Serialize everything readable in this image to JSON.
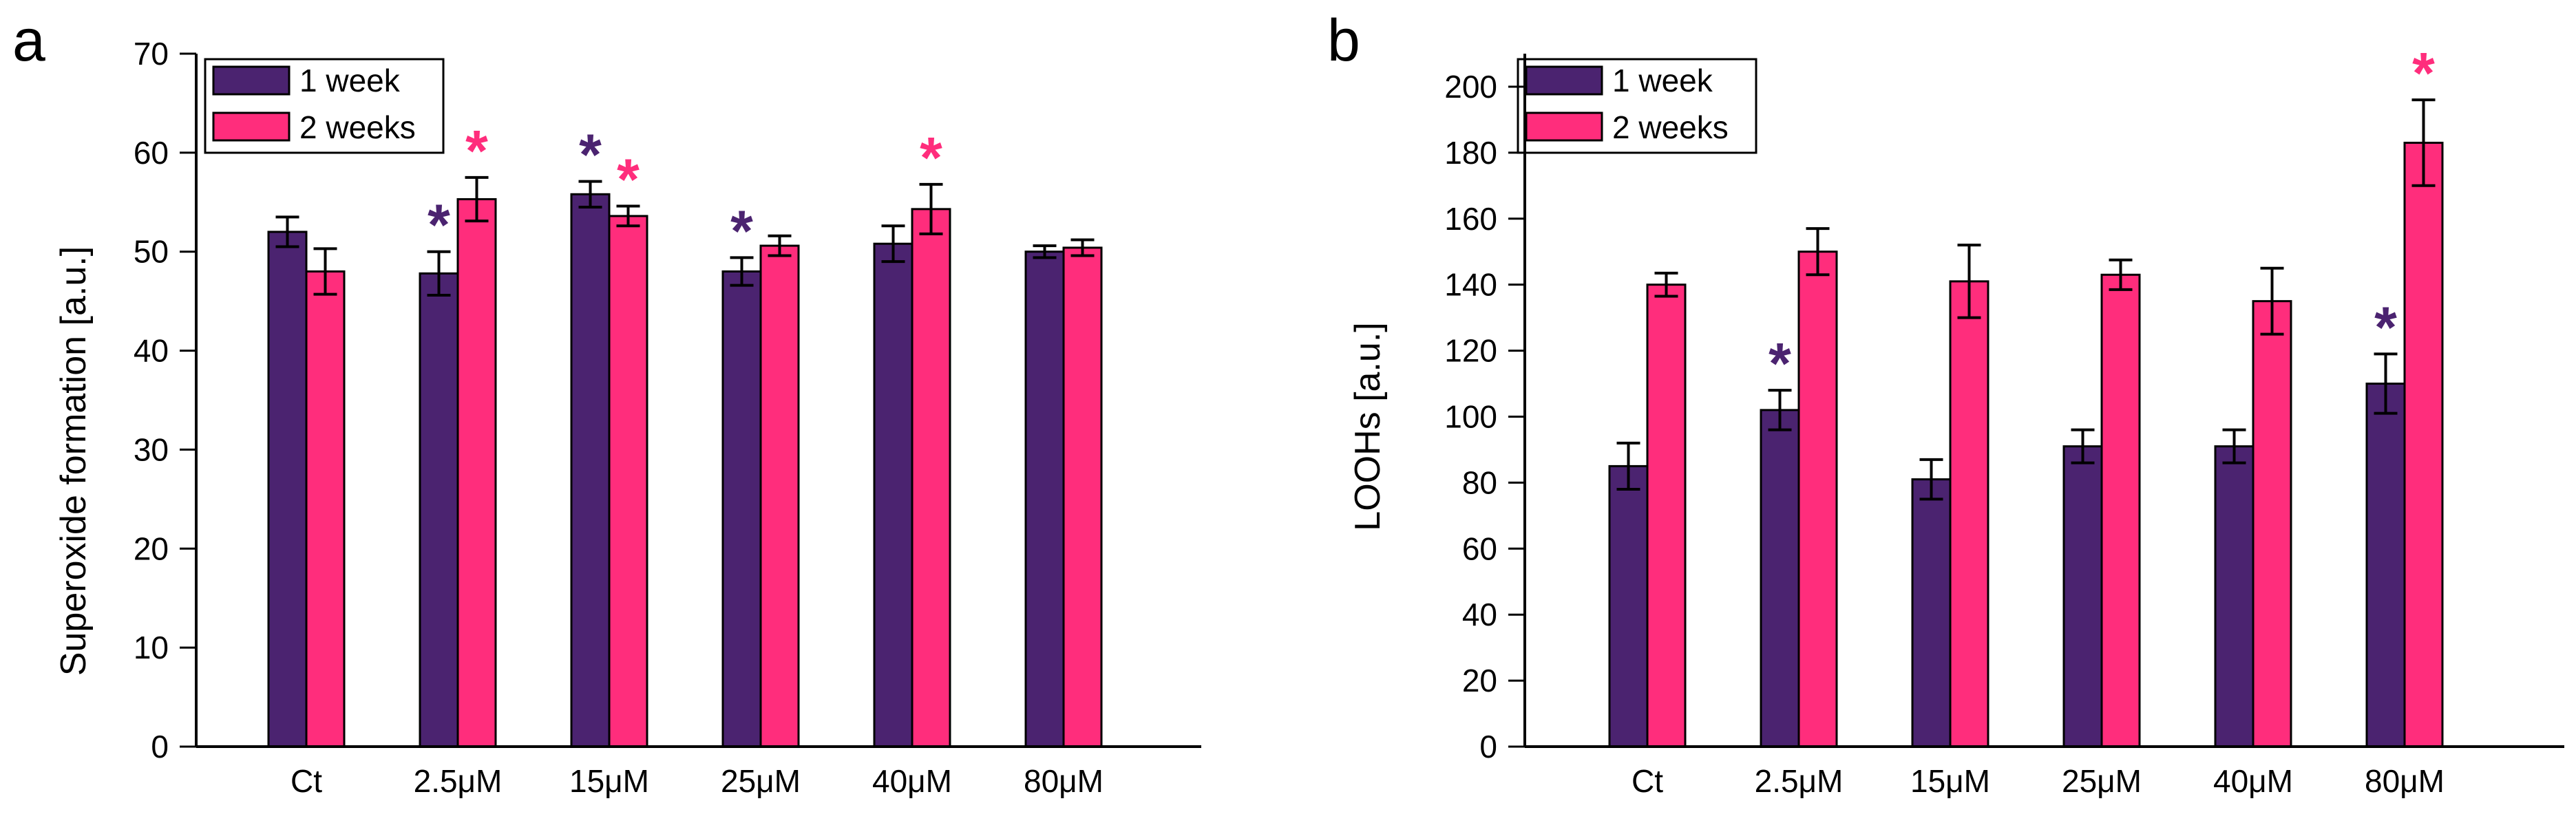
{
  "colors": {
    "week1": "#4b2370",
    "week2": "#ff2d7c"
  },
  "chart_data": [
    {
      "panel_label": "a",
      "type": "bar",
      "ylabel": "Superoxide formation [a.u.]",
      "ylim": [
        0,
        70
      ],
      "yticks": [
        0,
        10,
        20,
        30,
        40,
        50,
        60,
        70
      ],
      "categories": [
        "Ct",
        "2.5μM",
        "15μM",
        "25μM",
        "40μM",
        "80μM"
      ],
      "legend_position": "top-left",
      "series": [
        {
          "name": "1 week",
          "color": "week1",
          "values": [
            52,
            47.8,
            55.8,
            48,
            50.8,
            50
          ],
          "errors": [
            1.5,
            2.2,
            1.3,
            1.4,
            1.8,
            0.6
          ],
          "significant": [
            false,
            true,
            true,
            true,
            false,
            false
          ]
        },
        {
          "name": "2 weeks",
          "color": "week2",
          "values": [
            48,
            55.3,
            53.6,
            50.6,
            54.3,
            50.4
          ],
          "errors": [
            2.3,
            2.2,
            1,
            1,
            2.5,
            0.8
          ],
          "significant": [
            false,
            true,
            true,
            false,
            true,
            false
          ]
        }
      ],
      "significance_marker": "*"
    },
    {
      "panel_label": "b",
      "type": "bar",
      "ylabel": "LOOHs [a.u.]",
      "ylim": [
        0,
        210
      ],
      "yticks": [
        0,
        20,
        40,
        60,
        80,
        100,
        120,
        140,
        160,
        180,
        200
      ],
      "categories": [
        "Ct",
        "2.5μM",
        "15μM",
        "25μM",
        "40μM",
        "80μM"
      ],
      "legend_position": "top-left",
      "series": [
        {
          "name": "1 week",
          "color": "week1",
          "values": [
            85,
            102,
            81,
            91,
            91,
            110
          ],
          "errors": [
            7,
            6,
            6,
            5,
            5,
            9
          ],
          "significant": [
            false,
            true,
            false,
            false,
            false,
            true
          ]
        },
        {
          "name": "2 weeks",
          "color": "week2",
          "values": [
            140,
            150,
            141,
            143,
            135,
            183
          ],
          "errors": [
            3.5,
            7,
            11,
            4.5,
            10,
            13
          ],
          "significant": [
            false,
            false,
            false,
            false,
            false,
            true
          ]
        }
      ],
      "significance_marker": "*"
    }
  ]
}
